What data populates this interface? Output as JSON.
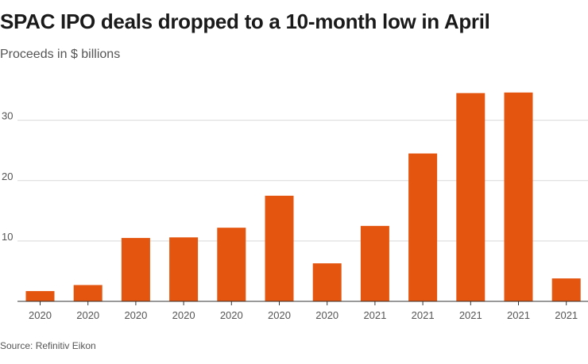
{
  "header": {
    "title": "SPAC IPO deals dropped to a 10-month low in April",
    "subtitle": "Proceeds in $ billions"
  },
  "footer": {
    "source": "Source: Refinitiv Eikon"
  },
  "colors": {
    "bar": "#E4550F",
    "grid": "#d9d9d9",
    "axis": "#333333",
    "tick_text": "#555555"
  },
  "chart_data": {
    "type": "bar",
    "title": "SPAC IPO deals dropped to a 10-month low in April",
    "subtitle": "Proceeds in $ billions",
    "xlabel": "",
    "ylabel": "Proceeds in $ billions",
    "categories": [
      "2020",
      "2020",
      "2020",
      "2020",
      "2020",
      "2020",
      "2020",
      "2021",
      "2021",
      "2021",
      "2021",
      "2021"
    ],
    "values": [
      1.7,
      2.7,
      10.5,
      10.6,
      12.2,
      17.5,
      6.3,
      12.5,
      24.5,
      34.5,
      34.6,
      3.8
    ],
    "yticks": [
      10,
      20,
      30
    ],
    "ylim": [
      0,
      36
    ],
    "grid": true,
    "source": "Source: Refinitiv Eikon"
  }
}
